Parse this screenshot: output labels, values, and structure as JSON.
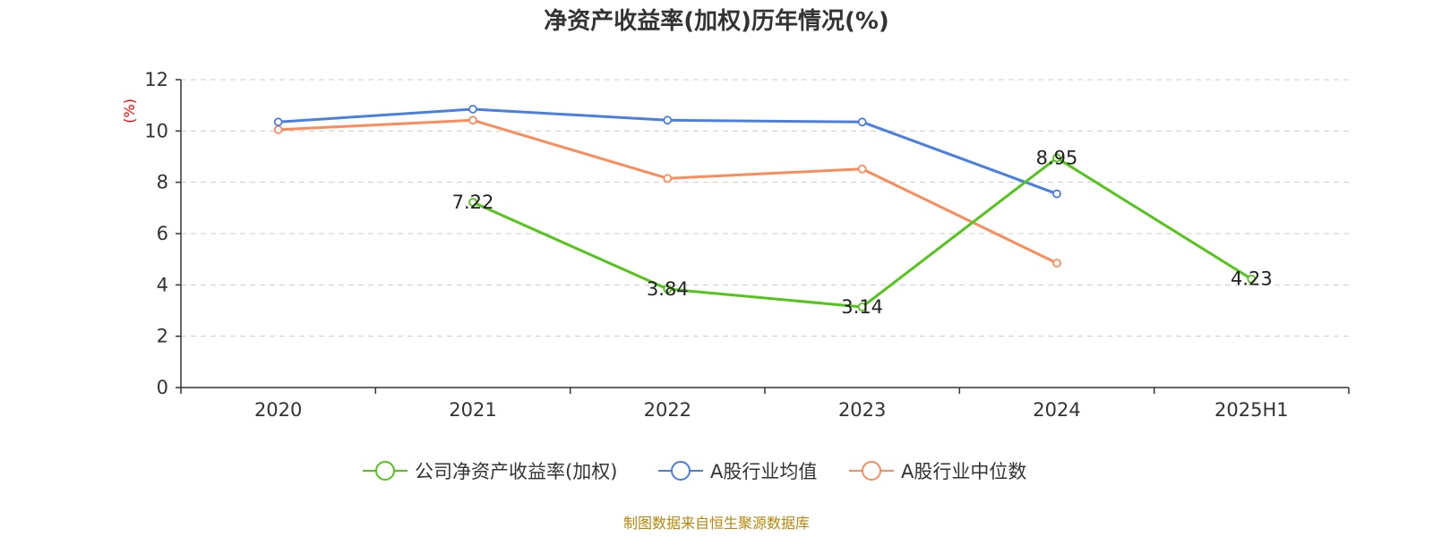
{
  "chart_data": {
    "type": "line",
    "title": "净资产收益率(加权)历年情况(%)",
    "ylabel": "(%)",
    "xlabel": "",
    "categories": [
      "2020",
      "2021",
      "2022",
      "2023",
      "2024",
      "2025H1"
    ],
    "ylim": [
      0,
      12
    ],
    "yticks": [
      0,
      2,
      4,
      6,
      8,
      10,
      12
    ],
    "grid": true,
    "legend_position": "bottom",
    "series": [
      {
        "name": "公司净资产收益率(加权)",
        "color": "#52c41a",
        "values": [
          null,
          7.22,
          3.84,
          3.14,
          8.95,
          4.23
        ],
        "show_labels": true
      },
      {
        "name": "A股行业均值",
        "color": "#4a7ee0",
        "values": [
          10.35,
          10.85,
          10.42,
          10.35,
          7.55,
          null
        ],
        "show_labels": false
      },
      {
        "name": "A股行业中位数",
        "color": "#f98c5a",
        "values": [
          10.05,
          10.42,
          8.15,
          8.52,
          4.85,
          null
        ],
        "show_labels": false
      }
    ]
  },
  "source": "制图数据来自恒生聚源数据库"
}
